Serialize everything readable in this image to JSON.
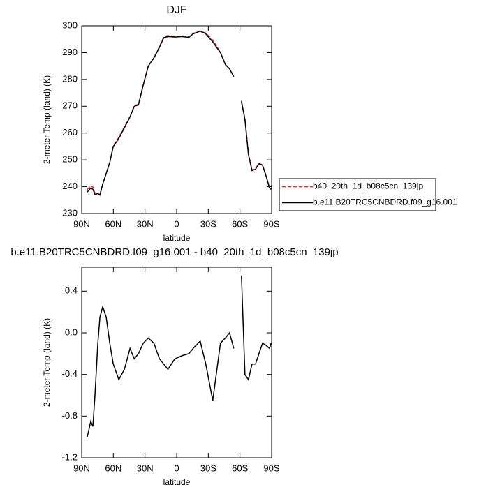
{
  "chart_data": [
    {
      "type": "line",
      "title": "DJF",
      "x_label": "latitude",
      "y_label": "2-meter Temp (land) (K)",
      "x": [
        84.7,
        81.4,
        79.4,
        77.4,
        74.7,
        72.7,
        70.1,
        66.8,
        63.4,
        60.1,
        54.8,
        49.5,
        44.2,
        40.2,
        36.2,
        31.6,
        26.9,
        21.6,
        16.3,
        12.3,
        8.3,
        1.7,
        -5,
        -11.6,
        -15.6,
        -22.3,
        -27.6,
        -34.2,
        -41.5,
        -46.2,
        -50.1,
        -54.1,
        -58,
        -61.4,
        -64.7,
        -68,
        -71.4,
        -74.7,
        -78,
        -81.4,
        -84.7,
        -88,
        -89.5
      ],
      "series": [
        {
          "name": "b40_20th_1d_b08c5cn_139jp",
          "color": "#e41a1c",
          "dashed": true,
          "values": [
            239.0,
            240.35,
            239.9,
            237.6,
            237.6,
            236.85,
            240.75,
            244.85,
            249.1,
            255.3,
            258.45,
            262.35,
            266.15,
            270.25,
            270.7,
            278.1,
            285.05,
            288.1,
            292.25,
            295.8,
            296.35,
            296.05,
            296.22,
            295.9,
            297.15,
            298.08,
            297.3,
            294.65,
            290.1,
            285.55,
            284.0,
            281.15,
            null,
            271.45,
            265.4,
            252.45,
            246.3,
            246.8,
            248.7,
            248.1,
            244.12,
            239.65,
            239.1
          ]
        },
        {
          "name": "b.e11.B20TRC5CNBDRD.f09_g16.001",
          "color": "#000000",
          "dashed": false,
          "values": [
            238,
            239.5,
            239,
            237,
            237.5,
            237,
            241,
            245,
            249,
            255,
            258,
            262,
            266,
            270,
            270.5,
            278,
            285,
            288,
            292,
            295.5,
            296,
            295.8,
            296,
            295.7,
            297,
            298,
            297,
            294,
            290,
            285.5,
            284,
            281,
            null,
            272,
            265,
            252,
            246,
            246.5,
            248.5,
            248,
            244,
            239.5,
            239
          ]
        }
      ],
      "xlim": [
        90,
        -90
      ],
      "xticks": [
        {
          "value": 90,
          "label": "90N"
        },
        {
          "value": 60,
          "label": "60N"
        },
        {
          "value": 30,
          "label": "30N"
        },
        0,
        {
          "value": -30,
          "label": "30S"
        },
        {
          "value": -60,
          "label": "60S"
        },
        {
          "value": -90,
          "label": "90S"
        }
      ],
      "ylim": [
        230,
        300
      ],
      "yticks": [
        230,
        240,
        250,
        260,
        270,
        280,
        290,
        300
      ],
      "legend": "right"
    },
    {
      "type": "line",
      "title": "b.e11.B20TRC5CNBDRD.f09_g16.001 - b40_20th_1d_b08c5cn_139jp",
      "x_label": "latitude",
      "y_label": "2-meter Temp (land) (K)",
      "x": [
        84.7,
        81.4,
        79.4,
        77.4,
        74.7,
        72.7,
        70.1,
        66.8,
        63.4,
        60.1,
        54.8,
        49.5,
        44.2,
        40.2,
        36.2,
        31.6,
        26.9,
        21.6,
        16.3,
        12.3,
        8.3,
        1.7,
        -5,
        -11.6,
        -15.6,
        -22.3,
        -27.6,
        -34.2,
        -41.5,
        -46.2,
        -50.1,
        -54.1,
        -58,
        -61.4,
        -64.7,
        -68,
        -71.4,
        -74.7,
        -78,
        -81.4,
        -84.7,
        -88,
        -89.5
      ],
      "color": "#000000",
      "values": [
        -1.0,
        -0.85,
        -0.9,
        -0.6,
        -0.1,
        0.15,
        0.25,
        0.15,
        -0.1,
        -0.3,
        -0.45,
        -0.35,
        -0.15,
        -0.25,
        -0.2,
        -0.1,
        -0.05,
        -0.1,
        -0.25,
        -0.3,
        -0.35,
        -0.25,
        -0.22,
        -0.2,
        -0.15,
        -0.08,
        -0.3,
        -0.65,
        -0.1,
        -0.05,
        0.0,
        -0.15,
        null,
        0.55,
        -0.4,
        -0.45,
        -0.3,
        -0.3,
        -0.2,
        -0.1,
        -0.12,
        -0.15,
        -0.1
      ],
      "xlim": [
        90,
        -90
      ],
      "xticks": [
        {
          "value": 90,
          "label": "90N"
        },
        {
          "value": 60,
          "label": "60N"
        },
        {
          "value": 30,
          "label": "30N"
        },
        0,
        {
          "value": -30,
          "label": "30S"
        },
        {
          "value": -60,
          "label": "60S"
        },
        {
          "value": -90,
          "label": "90S"
        }
      ],
      "ylim": [
        -1.2,
        0.63
      ],
      "yticks": [
        0.4,
        {
          "value": 0,
          "label": "0.0"
        },
        -0.4,
        -0.8,
        -1.2
      ]
    }
  ]
}
